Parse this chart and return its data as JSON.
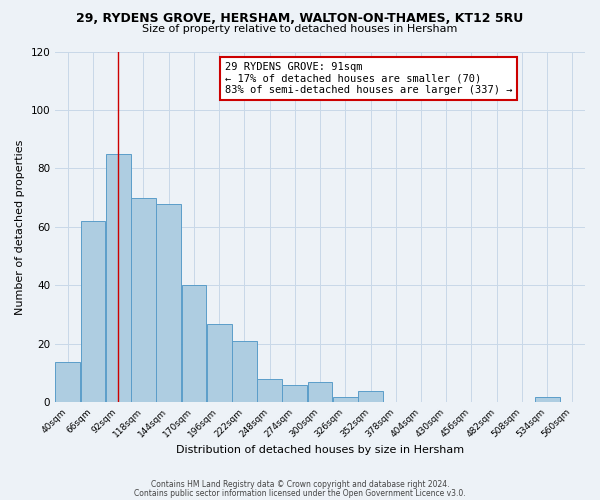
{
  "title_line1": "29, RYDENS GROVE, HERSHAM, WALTON-ON-THAMES, KT12 5RU",
  "title_line2": "Size of property relative to detached houses in Hersham",
  "xlabel": "Distribution of detached houses by size in Hersham",
  "ylabel": "Number of detached properties",
  "bin_labels": [
    "40sqm",
    "66sqm",
    "92sqm",
    "118sqm",
    "144sqm",
    "170sqm",
    "196sqm",
    "222sqm",
    "248sqm",
    "274sqm",
    "300sqm",
    "326sqm",
    "352sqm",
    "378sqm",
    "404sqm",
    "430sqm",
    "456sqm",
    "482sqm",
    "508sqm",
    "534sqm",
    "560sqm"
  ],
  "bar_heights": [
    14,
    62,
    85,
    70,
    68,
    40,
    27,
    21,
    8,
    6,
    7,
    2,
    4,
    0,
    0,
    0,
    0,
    0,
    0,
    2,
    0
  ],
  "bar_color": "#aecde1",
  "bar_edge_color": "#5b9dc9",
  "vline_x_index": 2,
  "vline_color": "#cc0000",
  "annotation_line1": "29 RYDENS GROVE: 91sqm",
  "annotation_line2": "← 17% of detached houses are smaller (70)",
  "annotation_line3": "83% of semi-detached houses are larger (337) →",
  "annotation_box_color": "#ffffff",
  "annotation_box_edge": "#cc0000",
  "ylim": [
    0,
    120
  ],
  "yticks": [
    0,
    20,
    40,
    60,
    80,
    100,
    120
  ],
  "footnote1": "Contains HM Land Registry data © Crown copyright and database right 2024.",
  "footnote2": "Contains public sector information licensed under the Open Government Licence v3.0.",
  "background_color": "#edf2f7",
  "plot_background": "#edf2f7",
  "grid_color": "#c8d8e8"
}
